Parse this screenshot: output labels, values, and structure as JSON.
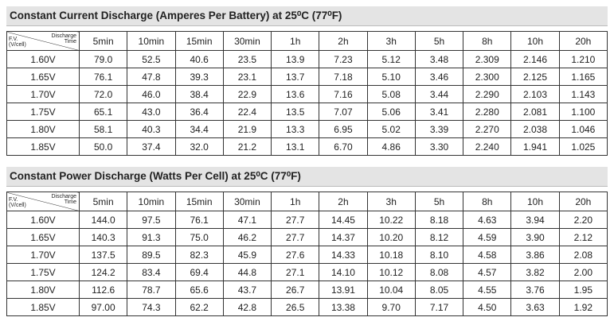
{
  "tables": [
    {
      "title": "Constant Current Discharge (Amperes Per Battery) at 25⁰C (77⁰F)",
      "corner": {
        "row_label": [
          "F.V.",
          "(V/cell)"
        ],
        "column_label": [
          "Discharge",
          "Time"
        ]
      },
      "columns": [
        "5min",
        "10min",
        "15min",
        "30min",
        "1h",
        "2h",
        "3h",
        "5h",
        "8h",
        "10h",
        "20h"
      ],
      "rows": [
        [
          "1.60V",
          "79.0",
          "52.5",
          "40.6",
          "23.5",
          "13.9",
          "7.23",
          "5.12",
          "3.48",
          "2.309",
          "2.146",
          "1.210"
        ],
        [
          "1.65V",
          "76.1",
          "47.8",
          "39.3",
          "23.1",
          "13.7",
          "7.18",
          "5.10",
          "3.46",
          "2.300",
          "2.125",
          "1.165"
        ],
        [
          "1.70V",
          "72.0",
          "46.0",
          "38.4",
          "22.9",
          "13.6",
          "7.16",
          "5.08",
          "3.44",
          "2.290",
          "2.103",
          "1.143"
        ],
        [
          "1.75V",
          "65.1",
          "43.0",
          "36.4",
          "22.4",
          "13.5",
          "7.07",
          "5.06",
          "3.41",
          "2.280",
          "2.081",
          "1.100"
        ],
        [
          "1.80V",
          "58.1",
          "40.3",
          "34.4",
          "21.9",
          "13.3",
          "6.95",
          "5.02",
          "3.39",
          "2.270",
          "2.038",
          "1.046"
        ],
        [
          "1.85V",
          "50.0",
          "37.4",
          "32.0",
          "21.2",
          "13.1",
          "6.70",
          "4.86",
          "3.30",
          "2.240",
          "1.941",
          "1.025"
        ]
      ]
    },
    {
      "title": "Constant Power Discharge (Watts Per Cell) at 25⁰C (77⁰F)",
      "corner": {
        "row_label": [
          "F.V.",
          "(V/cell)"
        ],
        "column_label": [
          "Discharge",
          "Time"
        ]
      },
      "columns": [
        "5min",
        "10min",
        "15min",
        "30min",
        "1h",
        "2h",
        "3h",
        "5h",
        "8h",
        "10h",
        "20h"
      ],
      "rows": [
        [
          "1.60V",
          "144.0",
          "97.5",
          "76.1",
          "47.1",
          "27.7",
          "14.45",
          "10.22",
          "8.18",
          "4.63",
          "3.94",
          "2.20"
        ],
        [
          "1.65V",
          "140.3",
          "91.3",
          "75.0",
          "46.2",
          "27.7",
          "14.37",
          "10.20",
          "8.12",
          "4.59",
          "3.90",
          "2.12"
        ],
        [
          "1.70V",
          "137.5",
          "89.5",
          "82.3",
          "45.9",
          "27.6",
          "14.33",
          "10.18",
          "8.10",
          "4.58",
          "3.86",
          "2.08"
        ],
        [
          "1.75V",
          "124.2",
          "83.4",
          "69.4",
          "44.8",
          "27.1",
          "14.10",
          "10.12",
          "8.08",
          "4.57",
          "3.82",
          "2.00"
        ],
        [
          "1.80V",
          "112.6",
          "78.7",
          "65.6",
          "43.7",
          "26.7",
          "13.91",
          "10.04",
          "8.05",
          "4.55",
          "3.76",
          "1.95"
        ],
        [
          "1.85V",
          "97.00",
          "74.3",
          "62.2",
          "42.8",
          "26.5",
          "13.38",
          "9.70",
          "7.17",
          "4.50",
          "3.63",
          "1.92"
        ]
      ]
    }
  ]
}
